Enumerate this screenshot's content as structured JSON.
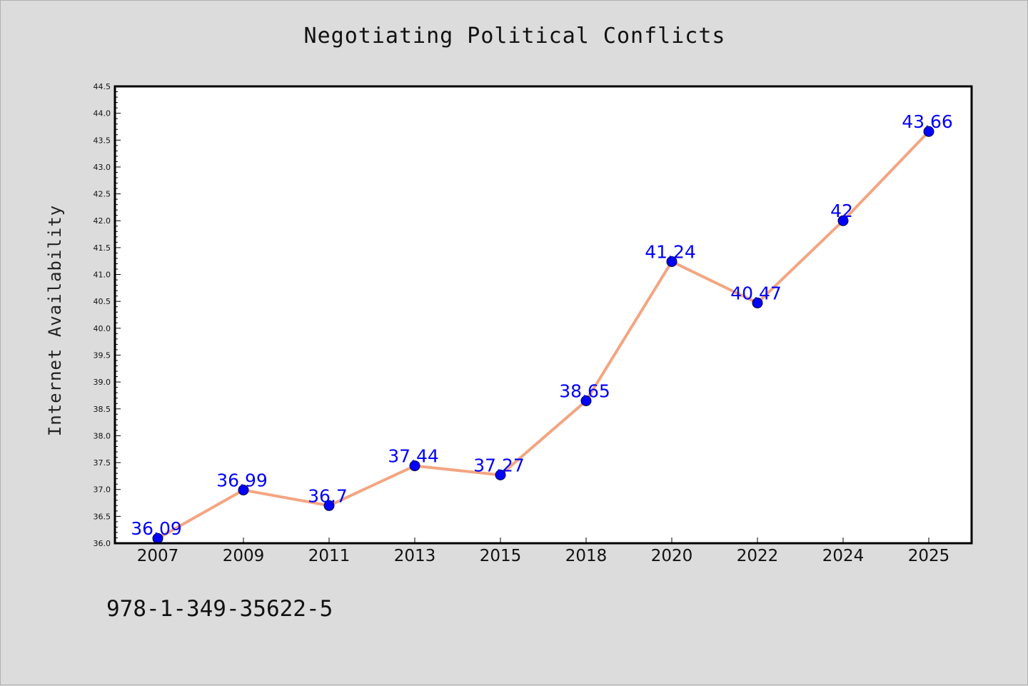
{
  "figure": {
    "isbn": "978-1-349-35622-5"
  },
  "colors": {
    "line": "#f4a582",
    "marker": "#0000ff",
    "data_label": "#0000ff",
    "background": "#dcdcdc",
    "plot_bg": "#ffffff"
  },
  "chart_data": {
    "type": "line",
    "title": "Negotiating Political Conflicts",
    "xlabel": "",
    "ylabel": "Internet Availability",
    "categories": [
      "2007",
      "2009",
      "2011",
      "2013",
      "2015",
      "2018",
      "2020",
      "2022",
      "2024",
      "2025"
    ],
    "values": [
      36.09,
      36.99,
      36.7,
      37.44,
      37.27,
      38.65,
      41.24,
      40.47,
      42,
      43.66
    ],
    "data_labels": [
      "36.09",
      "36.99",
      "36.7",
      "37.44",
      "37.27",
      "38.65",
      "41.24",
      "40.47",
      "42",
      "43.66"
    ],
    "ylim": [
      36.0,
      44.5
    ],
    "yticks": [
      "36.0",
      "36.5",
      "37.0",
      "37.5",
      "38.0",
      "38.5",
      "39.0",
      "39.5",
      "40.0",
      "40.5",
      "41.0",
      "41.5",
      "42.0",
      "42.5",
      "43.0",
      "43.5",
      "44.0",
      "44.5"
    ],
    "grid": false,
    "legend": "none"
  }
}
